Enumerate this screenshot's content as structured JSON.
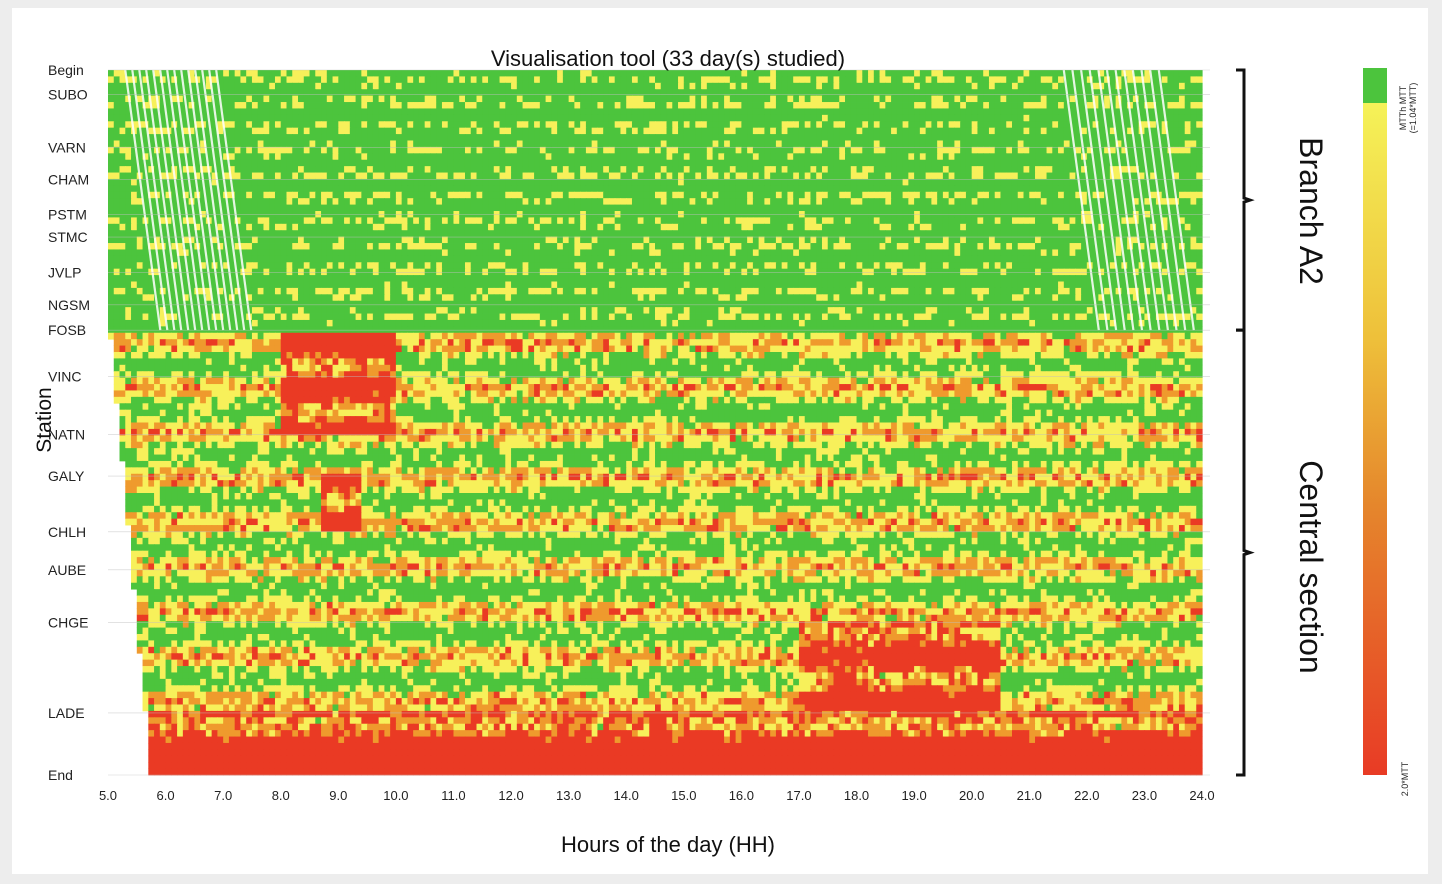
{
  "chart_data": {
    "type": "heatmap",
    "title": "Visualisation tool (33 day(s) studied)",
    "xlabel": "Hours of the day (HH)",
    "ylabel": "Station",
    "xlim": [
      5.0,
      24.0
    ],
    "x_ticks": [
      "5.0",
      "6.0",
      "7.0",
      "8.0",
      "9.0",
      "10.0",
      "11.0",
      "12.0",
      "13.0",
      "14.0",
      "15.0",
      "16.0",
      "17.0",
      "18.0",
      "19.0",
      "20.0",
      "21.0",
      "22.0",
      "23.0",
      "24.0"
    ],
    "stations": [
      {
        "name": "Begin",
        "pos": 0.0
      },
      {
        "name": "SUBO",
        "pos": 0.035
      },
      {
        "name": "VARN",
        "pos": 0.11
      },
      {
        "name": "CHAM",
        "pos": 0.155
      },
      {
        "name": "PSTM",
        "pos": 0.205
      },
      {
        "name": "STMC",
        "pos": 0.237
      },
      {
        "name": "JVLP",
        "pos": 0.287
      },
      {
        "name": "NGSM",
        "pos": 0.333
      },
      {
        "name": "FOSB",
        "pos": 0.369
      },
      {
        "name": "VINC",
        "pos": 0.435
      },
      {
        "name": "NATN",
        "pos": 0.517
      },
      {
        "name": "GALY",
        "pos": 0.576
      },
      {
        "name": "CHLH",
        "pos": 0.655
      },
      {
        "name": "AUBE",
        "pos": 0.709
      },
      {
        "name": "CHGE",
        "pos": 0.784
      },
      {
        "name": "LADE",
        "pos": 0.912
      },
      {
        "name": "End",
        "pos": 1.0
      }
    ],
    "sections": [
      {
        "name": "Branch A2",
        "from": "Begin",
        "to": "FOSB"
      },
      {
        "name": "Central section",
        "from": "FOSB",
        "to": "End"
      }
    ],
    "colorscale": {
      "low_label": "MTTh MTT (=1.04*MTT)",
      "high_label": "2.0*MTT",
      "colors": [
        "#4cc43d",
        "#f7f05a",
        "#ef9a2d",
        "#ea3a24"
      ]
    },
    "hotspots": [
      {
        "hours": [
          8.0,
          10.0
        ],
        "stations": [
          "FOSB",
          "NATN"
        ],
        "level": "high"
      },
      {
        "hours": [
          8.7,
          9.4
        ],
        "stations": [
          "GALY",
          "CHLH"
        ],
        "level": "high"
      },
      {
        "hours": [
          17.0,
          20.5
        ],
        "stations": [
          "CHGE",
          "LADE"
        ],
        "level": "high"
      },
      {
        "hours": [
          5.7,
          24.0
        ],
        "stations": [
          "LADE",
          "End"
        ],
        "level": "high"
      }
    ]
  }
}
